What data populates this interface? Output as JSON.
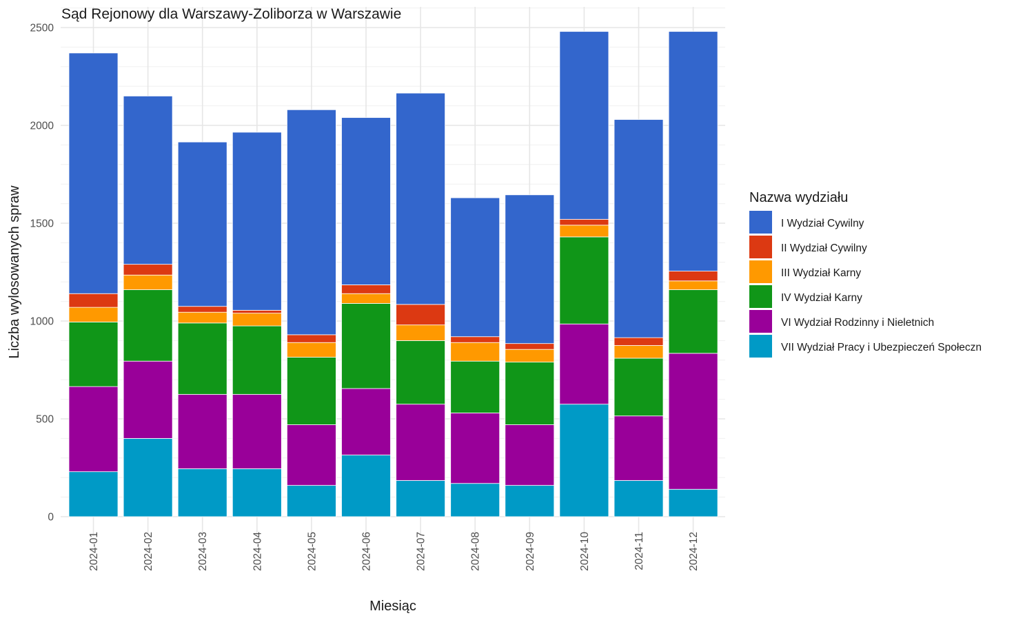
{
  "chart_data": {
    "type": "bar",
    "stacked": true,
    "title": "Sąd Rejonowy dla Warszawy-Zoliborza w Warszawie",
    "xlabel": "Miesiąc",
    "ylabel": "Liczba wylosowanych spraw",
    "ylim": [
      0,
      2500
    ],
    "yticks": [
      0,
      500,
      1000,
      1500,
      2000,
      2500
    ],
    "grid": true,
    "legend_position": "right",
    "legend_title": "Nazwa wydziału",
    "categories": [
      "2024-01",
      "2024-02",
      "2024-03",
      "2024-04",
      "2024-05",
      "2024-06",
      "2024-07",
      "2024-08",
      "2024-09",
      "2024-10",
      "2024-11",
      "2024-12"
    ],
    "series": [
      {
        "name": "VII Wydział Pracy i Ubezpieczeń Społeczn",
        "color": "#009ac6",
        "values": [
          230,
          400,
          245,
          245,
          160,
          315,
          185,
          170,
          160,
          575,
          185,
          140
        ]
      },
      {
        "name": "VI Wydział Rodzinny i Nieletnich",
        "color": "#990099",
        "values": [
          435,
          395,
          380,
          380,
          310,
          340,
          390,
          360,
          310,
          410,
          330,
          695
        ]
      },
      {
        "name": "IV Wydział Karny",
        "color": "#109618",
        "values": [
          330,
          365,
          365,
          350,
          345,
          435,
          325,
          265,
          320,
          445,
          295,
          325
        ]
      },
      {
        "name": "III Wydział Karny",
        "color": "#ff9900",
        "values": [
          75,
          75,
          55,
          65,
          75,
          50,
          80,
          95,
          65,
          60,
          65,
          45
        ]
      },
      {
        "name": "II Wydział Cywilny",
        "color": "#dc3912",
        "values": [
          70,
          55,
          30,
          15,
          40,
          45,
          105,
          30,
          30,
          30,
          40,
          50
        ]
      },
      {
        "name": "I Wydział Cywilny",
        "color": "#3366cc",
        "values": [
          1230,
          860,
          840,
          910,
          1150,
          855,
          1080,
          710,
          760,
          960,
          1115,
          1225
        ]
      }
    ],
    "legend_order": [
      "I Wydział Cywilny",
      "II Wydział Cywilny",
      "III Wydział Karny",
      "IV Wydział Karny",
      "VI Wydział Rodzinny i Nieletnich",
      "VII Wydział Pracy i Ubezpieczeń Społeczn"
    ]
  }
}
